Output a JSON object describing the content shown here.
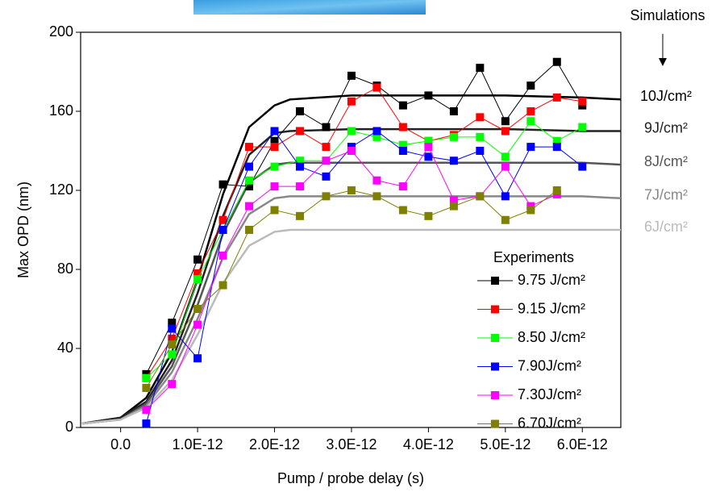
{
  "chart_data": {
    "type": "line",
    "xlabel": "Pump / probe delay (s)",
    "ylabel": "Max OPD (nm)",
    "annotation": "Simulations",
    "legend_title": "Experiments",
    "legend": "lower right",
    "xlim": [
      -5.2e-13,
      6.5e-12
    ],
    "ylim": [
      0,
      200
    ],
    "xticks": [
      {
        "value": 0,
        "label": "0.0"
      },
      {
        "value": 1e-12,
        "label": "1.0E-12"
      },
      {
        "value": 2e-12,
        "label": "2.0E-12"
      },
      {
        "value": 3e-12,
        "label": "3.0E-12"
      },
      {
        "value": 4e-12,
        "label": "4.0E-12"
      },
      {
        "value": 5e-12,
        "label": "5.0E-12"
      },
      {
        "value": 6e-12,
        "label": "6.0E-12"
      }
    ],
    "yticks": [
      0,
      40,
      80,
      120,
      160,
      200
    ],
    "series": [
      {
        "name": "9.75 J/cm²",
        "color": "#000000",
        "marker": "square",
        "x": [
          3.33e-13,
          6.67e-13,
          1e-12,
          1.33e-12,
          1.67e-12,
          2e-12,
          2.33e-12,
          2.67e-12,
          3e-12,
          3.33e-12,
          3.67e-12,
          4e-12,
          4.33e-12,
          4.67e-12,
          5e-12,
          5.33e-12,
          5.67e-12,
          6e-12
        ],
        "values": [
          27,
          53,
          85,
          123,
          122,
          145,
          160,
          152,
          178,
          173,
          163,
          168,
          160,
          182,
          155,
          173,
          185,
          163
        ]
      },
      {
        "name": "9.15 J/cm²",
        "color": "#ff0000",
        "marker": "square",
        "x": [
          3.33e-13,
          6.67e-13,
          1e-12,
          1.33e-12,
          1.67e-12,
          2e-12,
          2.33e-12,
          2.67e-12,
          3e-12,
          3.33e-12,
          3.67e-12,
          4e-12,
          4.33e-12,
          4.67e-12,
          5e-12,
          5.33e-12,
          5.67e-12,
          6e-12
        ],
        "values": [
          25,
          45,
          78,
          105,
          142,
          142,
          150,
          142,
          165,
          172,
          152,
          145,
          148,
          157,
          150,
          160,
          167,
          165
        ]
      },
      {
        "name": "8.50 J/cm²",
        "color": "#00ff00",
        "marker": "square",
        "x": [
          3.33e-13,
          6.67e-13,
          1e-12,
          1.33e-12,
          1.67e-12,
          2e-12,
          2.33e-12,
          2.67e-12,
          3e-12,
          3.33e-12,
          3.67e-12,
          4e-12,
          4.33e-12,
          4.67e-12,
          5e-12,
          5.33e-12,
          5.67e-12,
          6e-12
        ],
        "values": [
          25,
          37,
          75,
          100,
          125,
          132,
          135,
          135,
          150,
          147,
          143,
          145,
          147,
          147,
          137,
          155,
          145,
          152
        ]
      },
      {
        "name": "7.90J/cm²",
        "color": "#0000ff",
        "marker": "square",
        "x": [
          3.33e-13,
          6.67e-13,
          1e-12,
          1.33e-12,
          1.67e-12,
          2e-12,
          2.33e-12,
          2.67e-12,
          3e-12,
          3.33e-12,
          3.67e-12,
          4e-12,
          4.33e-12,
          4.67e-12,
          5e-12,
          5.33e-12,
          5.67e-12,
          6e-12
        ],
        "values": [
          2,
          50,
          35,
          100,
          132,
          150,
          132,
          127,
          142,
          150,
          140,
          137,
          135,
          140,
          117,
          142,
          142,
          132
        ]
      },
      {
        "name": "7.30J/cm²",
        "color": "#ff00ff",
        "marker": "square",
        "x": [
          3.33e-13,
          6.67e-13,
          1e-12,
          1.33e-12,
          1.67e-12,
          2e-12,
          2.33e-12,
          2.67e-12,
          3e-12,
          3.33e-12,
          3.67e-12,
          4e-12,
          4.33e-12,
          4.67e-12,
          5e-12,
          5.33e-12,
          5.67e-12,
          6e-12
        ],
        "values": [
          9,
          22,
          52,
          87,
          112,
          122,
          122,
          135,
          140,
          125,
          122,
          142,
          115,
          117,
          132,
          112,
          118,
          null
        ]
      },
      {
        "name": "6.70J/cm²",
        "color": "#808000",
        "marker": "square",
        "x": [
          3.33e-13,
          6.67e-13,
          1e-12,
          1.33e-12,
          1.67e-12,
          2e-12,
          2.33e-12,
          2.67e-12,
          3e-12,
          3.33e-12,
          3.67e-12,
          4e-12,
          4.33e-12,
          4.67e-12,
          5e-12,
          5.33e-12,
          5.67e-12,
          6e-12
        ],
        "values": [
          20,
          42,
          60,
          72,
          100,
          110,
          107,
          117,
          120,
          117,
          110,
          107,
          112,
          117,
          105,
          110,
          120,
          null
        ]
      },
      {
        "name": "10J/cm²",
        "color": "#000000",
        "marker": "none",
        "x": [
          -5e-13,
          0,
          3.33e-13,
          6.67e-13,
          1e-12,
          1.33e-12,
          1.67e-12,
          2e-12,
          2.2e-12,
          3e-12,
          4e-12,
          5e-12,
          6e-12,
          6.5e-12
        ],
        "values": [
          2,
          5,
          15,
          38,
          75,
          118,
          152,
          163,
          166,
          168,
          168,
          168,
          167,
          166
        ]
      },
      {
        "name": "9J/cm²",
        "color": "#222222",
        "marker": "none",
        "x": [
          -5e-13,
          0,
          3.33e-13,
          6.67e-13,
          1e-12,
          1.33e-12,
          1.67e-12,
          2e-12,
          2.2e-12,
          3e-12,
          4e-12,
          5e-12,
          6e-12,
          6.5e-12
        ],
        "values": [
          2,
          5,
          13,
          34,
          68,
          107,
          138,
          149,
          150,
          151,
          151,
          151,
          150,
          150
        ]
      },
      {
        "name": "8J/cm²",
        "color": "#555555",
        "marker": "none",
        "x": [
          -5e-13,
          0,
          3.33e-13,
          6.67e-13,
          1e-12,
          1.33e-12,
          1.67e-12,
          2e-12,
          2.2e-12,
          3e-12,
          4e-12,
          5e-12,
          6e-12,
          6.5e-12
        ],
        "values": [
          2,
          4,
          12,
          31,
          62,
          98,
          124,
          133,
          134,
          134,
          134,
          134,
          134,
          133
        ]
      },
      {
        "name": "7J/cm²",
        "color": "#888888",
        "marker": "none",
        "x": [
          -5e-13,
          0,
          3.33e-13,
          6.67e-13,
          1e-12,
          1.33e-12,
          1.67e-12,
          2e-12,
          2.2e-12,
          3e-12,
          4e-12,
          5e-12,
          6e-12,
          6.5e-12
        ],
        "values": [
          2,
          4,
          11,
          28,
          55,
          86,
          108,
          116,
          117,
          117,
          117,
          117,
          117,
          116
        ]
      },
      {
        "name": "6J/cm²",
        "color": "#bbbbbb",
        "marker": "none",
        "x": [
          -5e-13,
          0,
          3.33e-13,
          6.67e-13,
          1e-12,
          1.33e-12,
          1.67e-12,
          2e-12,
          2.2e-12,
          3e-12,
          4e-12,
          5e-12,
          6e-12,
          6.5e-12
        ],
        "values": [
          2,
          4,
          10,
          24,
          47,
          73,
          92,
          99,
          100,
          100,
          100,
          100,
          100,
          100
        ]
      }
    ]
  }
}
